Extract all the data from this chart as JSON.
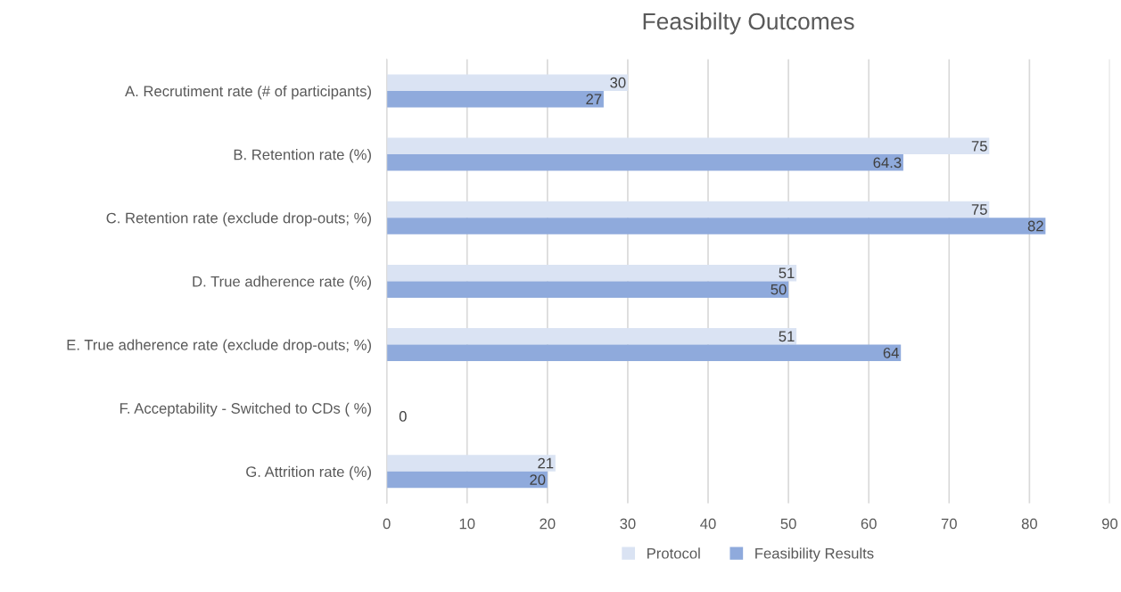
{
  "chart_data": {
    "type": "bar",
    "orientation": "horizontal",
    "title": "Feasibilty Outcomes",
    "categories": [
      "A. Recrutiment rate (# of participants)",
      "B. Retention rate (%)",
      "C. Retention rate (exclude drop-outs; %)",
      "D. True adherence rate (%)",
      "E. True adherence rate (exclude drop-outs; %)",
      "F. Acceptability - Switched to CDs ( %)",
      "G. Attrition rate (%)"
    ],
    "series": [
      {
        "name": "Protocol",
        "color": "#dae3f3",
        "values": [
          30,
          75,
          75,
          51,
          51,
          null,
          21
        ]
      },
      {
        "name": "Feasibility Results",
        "color": "#8faadc",
        "values": [
          27,
          64.3,
          82,
          50,
          64,
          0,
          20
        ]
      }
    ],
    "xlim": [
      0,
      90
    ],
    "xticks": [
      0,
      10,
      20,
      30,
      40,
      50,
      60,
      70,
      80,
      90
    ],
    "grid": "x",
    "legend": "bottom",
    "data_labels": true
  }
}
